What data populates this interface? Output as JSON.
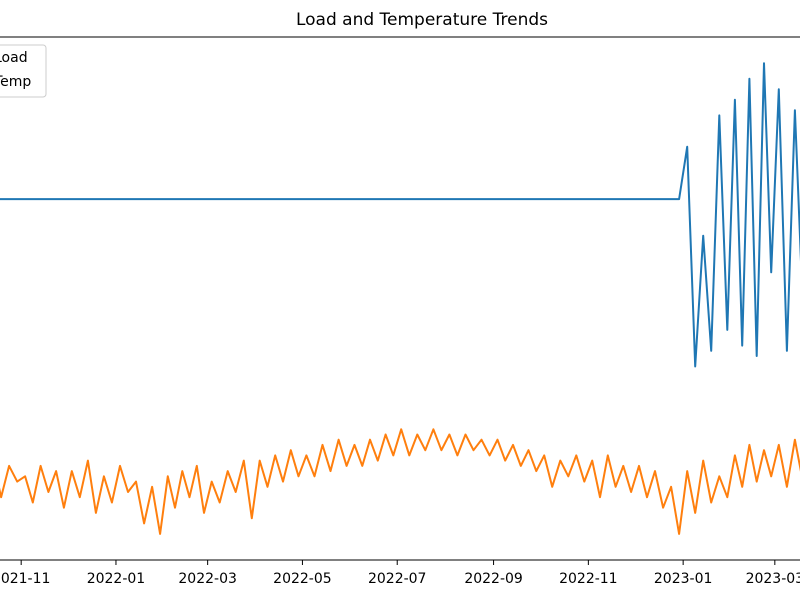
{
  "chart_data": {
    "type": "line",
    "title": "Load and Temperature Trends",
    "x": [
      "2021-10",
      "2021-10",
      "2021-10",
      "2021-10",
      "2021-10",
      "2021-10",
      "2021-11",
      "2021-11",
      "2021-11",
      "2021-11",
      "2021-11",
      "2021-11",
      "2021-12",
      "2021-12",
      "2021-12",
      "2021-12",
      "2021-12",
      "2021-12",
      "2022-01",
      "2022-01",
      "2022-01",
      "2022-01",
      "2022-01",
      "2022-01",
      "2022-02",
      "2022-02",
      "2022-02",
      "2022-02",
      "2022-02",
      "2022-02",
      "2022-03",
      "2022-03",
      "2022-03",
      "2022-03",
      "2022-03",
      "2022-03",
      "2022-04",
      "2022-04",
      "2022-04",
      "2022-04",
      "2022-04",
      "2022-04",
      "2022-05",
      "2022-05",
      "2022-05",
      "2022-05",
      "2022-05",
      "2022-05",
      "2022-06",
      "2022-06",
      "2022-06",
      "2022-06",
      "2022-06",
      "2022-06",
      "2022-07",
      "2022-07",
      "2022-07",
      "2022-07",
      "2022-07",
      "2022-07",
      "2022-08",
      "2022-08",
      "2022-08",
      "2022-08",
      "2022-08",
      "2022-08",
      "2022-09",
      "2022-09",
      "2022-09",
      "2022-09",
      "2022-09",
      "2022-09",
      "2022-10",
      "2022-10",
      "2022-10",
      "2022-10",
      "2022-10",
      "2022-10",
      "2022-11",
      "2022-11",
      "2022-11",
      "2022-11",
      "2022-11",
      "2022-11",
      "2022-12",
      "2022-12",
      "2022-12",
      "2022-12",
      "2022-12",
      "2022-12",
      "2023-01",
      "2023-01",
      "2023-01",
      "2023-01",
      "2023-01",
      "2023-01",
      "2023-02",
      "2023-02",
      "2023-02",
      "2023-02",
      "2023-02",
      "2023-02",
      "2023-03",
      "2023-03",
      "2023-03",
      "2023-03",
      "2023-03",
      "2023-03"
    ],
    "series": [
      {
        "name": "Load",
        "color": "#1f77b4",
        "values": [
          69,
          69,
          69,
          69,
          69,
          69,
          69,
          69,
          69,
          69,
          69,
          69,
          69,
          69,
          69,
          69,
          69,
          69,
          69,
          69,
          69,
          69,
          69,
          69,
          69,
          69,
          69,
          69,
          69,
          69,
          69,
          69,
          69,
          69,
          69,
          69,
          69,
          69,
          69,
          69,
          69,
          69,
          69,
          69,
          69,
          69,
          69,
          69,
          69,
          69,
          69,
          69,
          69,
          69,
          69,
          69,
          69,
          69,
          69,
          69,
          69,
          69,
          69,
          69,
          69,
          69,
          69,
          69,
          69,
          69,
          69,
          69,
          69,
          69,
          69,
          69,
          69,
          69,
          69,
          69,
          69,
          69,
          69,
          69,
          69,
          69,
          69,
          69,
          69,
          69,
          79,
          37,
          62,
          40,
          85,
          44,
          88,
          41,
          92,
          39,
          95,
          55,
          90,
          40,
          86,
          48,
          80,
          60
        ]
      },
      {
        "name": "Temp",
        "color": "#ff7f0e",
        "values": [
          17,
          14,
          19,
          12,
          18,
          15,
          16,
          11,
          18,
          13,
          17,
          10,
          17,
          12,
          19,
          9,
          16,
          11,
          18,
          13,
          15,
          7,
          14,
          5,
          16,
          10,
          17,
          12,
          18,
          9,
          15,
          11,
          17,
          13,
          19,
          8,
          19,
          14,
          20,
          15,
          21,
          16,
          20,
          16,
          22,
          17,
          23,
          18,
          22,
          18,
          23,
          19,
          24,
          20,
          25,
          20,
          24,
          21,
          25,
          21,
          24,
          20,
          24,
          21,
          23,
          20,
          23,
          19,
          22,
          18,
          21,
          17,
          20,
          14,
          19,
          16,
          20,
          15,
          19,
          12,
          20,
          14,
          18,
          13,
          18,
          12,
          17,
          10,
          14,
          5,
          17,
          9,
          19,
          11,
          16,
          12,
          20,
          14,
          22,
          15,
          21,
          16,
          22,
          14,
          23,
          15,
          21,
          16
        ]
      }
    ],
    "xlim": [
      "2021-10",
      "2023-03"
    ],
    "xticks": [
      "2021-11",
      "2022-01",
      "2022-03",
      "2022-05",
      "2022-07",
      "2022-09",
      "2022-11",
      "2023-01",
      "2023-03"
    ],
    "ylim": [
      0,
      100
    ],
    "legend": "upper left"
  }
}
